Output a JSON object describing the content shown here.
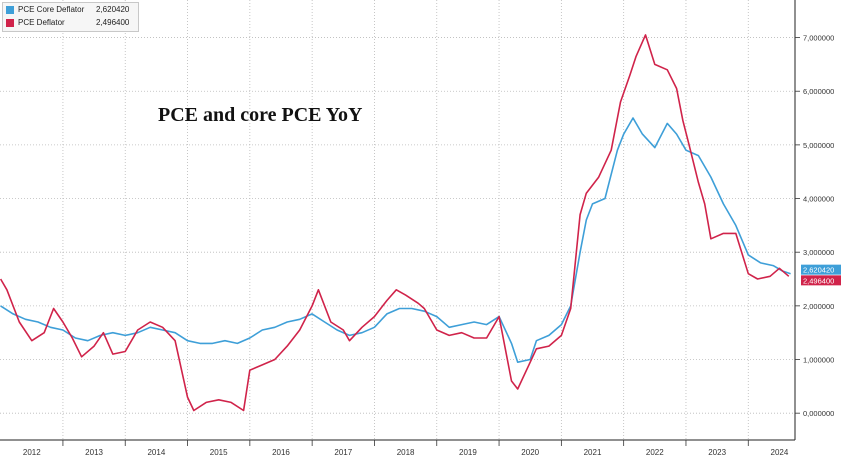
{
  "chart_data": {
    "type": "line",
    "title": "PCE and core PCE YoY",
    "x_ticks": [
      "2012",
      "2013",
      "2014",
      "2015",
      "2016",
      "2017",
      "2018",
      "2019",
      "2020",
      "2021",
      "2022",
      "2023",
      "2024"
    ],
    "y_ticks": [
      "0,000000",
      "1,000000",
      "2,000000",
      "3,000000",
      "4,000000",
      "5,000000",
      "6,000000",
      "7,000000"
    ],
    "ylim": [
      -0.5,
      7.7
    ],
    "xlim": [
      2011.99,
      2024.75
    ],
    "grid": true,
    "legend_position": "top-left",
    "series": [
      {
        "name": "PCE Core Deflator",
        "last_value": "2,620420",
        "color": "#3e9fd8",
        "points": [
          [
            2012.0,
            2.0
          ],
          [
            2012.2,
            1.85
          ],
          [
            2012.4,
            1.75
          ],
          [
            2012.6,
            1.7
          ],
          [
            2012.8,
            1.6
          ],
          [
            2013.0,
            1.55
          ],
          [
            2013.2,
            1.4
          ],
          [
            2013.4,
            1.35
          ],
          [
            2013.6,
            1.45
          ],
          [
            2013.8,
            1.5
          ],
          [
            2014.0,
            1.45
          ],
          [
            2014.2,
            1.5
          ],
          [
            2014.4,
            1.6
          ],
          [
            2014.6,
            1.55
          ],
          [
            2014.8,
            1.5
          ],
          [
            2015.0,
            1.35
          ],
          [
            2015.2,
            1.3
          ],
          [
            2015.4,
            1.3
          ],
          [
            2015.6,
            1.35
          ],
          [
            2015.8,
            1.3
          ],
          [
            2016.0,
            1.4
          ],
          [
            2016.2,
            1.55
          ],
          [
            2016.4,
            1.6
          ],
          [
            2016.6,
            1.7
          ],
          [
            2016.8,
            1.75
          ],
          [
            2017.0,
            1.85
          ],
          [
            2017.2,
            1.7
          ],
          [
            2017.4,
            1.55
          ],
          [
            2017.6,
            1.45
          ],
          [
            2017.8,
            1.5
          ],
          [
            2018.0,
            1.6
          ],
          [
            2018.2,
            1.85
          ],
          [
            2018.4,
            1.95
          ],
          [
            2018.6,
            1.95
          ],
          [
            2018.8,
            1.9
          ],
          [
            2019.0,
            1.8
          ],
          [
            2019.2,
            1.6
          ],
          [
            2019.4,
            1.65
          ],
          [
            2019.6,
            1.7
          ],
          [
            2019.8,
            1.65
          ],
          [
            2020.0,
            1.8
          ],
          [
            2020.2,
            1.3
          ],
          [
            2020.3,
            0.95
          ],
          [
            2020.5,
            1.0
          ],
          [
            2020.6,
            1.35
          ],
          [
            2020.8,
            1.45
          ],
          [
            2021.0,
            1.65
          ],
          [
            2021.15,
            2.0
          ],
          [
            2021.3,
            3.0
          ],
          [
            2021.4,
            3.6
          ],
          [
            2021.5,
            3.9
          ],
          [
            2021.7,
            4.0
          ],
          [
            2021.9,
            4.9
          ],
          [
            2022.0,
            5.2
          ],
          [
            2022.15,
            5.5
          ],
          [
            2022.3,
            5.2
          ],
          [
            2022.5,
            4.95
          ],
          [
            2022.7,
            5.4
          ],
          [
            2022.85,
            5.2
          ],
          [
            2023.0,
            4.9
          ],
          [
            2023.2,
            4.8
          ],
          [
            2023.4,
            4.4
          ],
          [
            2023.6,
            3.9
          ],
          [
            2023.8,
            3.5
          ],
          [
            2024.0,
            2.95
          ],
          [
            2024.2,
            2.8
          ],
          [
            2024.4,
            2.75
          ],
          [
            2024.55,
            2.65
          ],
          [
            2024.68,
            2.6
          ]
        ]
      },
      {
        "name": "PCE Deflator",
        "last_value": "2,496400",
        "color": "#d0234a",
        "points": [
          [
            2012.0,
            2.5
          ],
          [
            2012.1,
            2.3
          ],
          [
            2012.3,
            1.7
          ],
          [
            2012.5,
            1.35
          ],
          [
            2012.7,
            1.5
          ],
          [
            2012.85,
            1.95
          ],
          [
            2013.0,
            1.7
          ],
          [
            2013.15,
            1.4
          ],
          [
            2013.3,
            1.05
          ],
          [
            2013.5,
            1.25
          ],
          [
            2013.65,
            1.5
          ],
          [
            2013.8,
            1.1
          ],
          [
            2014.0,
            1.15
          ],
          [
            2014.2,
            1.55
          ],
          [
            2014.4,
            1.7
          ],
          [
            2014.6,
            1.6
          ],
          [
            2014.8,
            1.35
          ],
          [
            2015.0,
            0.3
          ],
          [
            2015.1,
            0.05
          ],
          [
            2015.3,
            0.2
          ],
          [
            2015.5,
            0.25
          ],
          [
            2015.7,
            0.2
          ],
          [
            2015.9,
            0.05
          ],
          [
            2016.0,
            0.8
          ],
          [
            2016.2,
            0.9
          ],
          [
            2016.4,
            1.0
          ],
          [
            2016.6,
            1.25
          ],
          [
            2016.8,
            1.55
          ],
          [
            2017.0,
            2.0
          ],
          [
            2017.1,
            2.3
          ],
          [
            2017.3,
            1.7
          ],
          [
            2017.5,
            1.55
          ],
          [
            2017.6,
            1.35
          ],
          [
            2017.8,
            1.6
          ],
          [
            2018.0,
            1.8
          ],
          [
            2018.2,
            2.1
          ],
          [
            2018.35,
            2.3
          ],
          [
            2018.5,
            2.2
          ],
          [
            2018.7,
            2.05
          ],
          [
            2018.8,
            1.95
          ],
          [
            2019.0,
            1.55
          ],
          [
            2019.2,
            1.45
          ],
          [
            2019.4,
            1.5
          ],
          [
            2019.6,
            1.4
          ],
          [
            2019.8,
            1.4
          ],
          [
            2020.0,
            1.8
          ],
          [
            2020.2,
            0.6
          ],
          [
            2020.3,
            0.45
          ],
          [
            2020.5,
            0.95
          ],
          [
            2020.6,
            1.2
          ],
          [
            2020.8,
            1.25
          ],
          [
            2021.0,
            1.45
          ],
          [
            2021.15,
            1.95
          ],
          [
            2021.3,
            3.7
          ],
          [
            2021.4,
            4.1
          ],
          [
            2021.6,
            4.4
          ],
          [
            2021.8,
            4.9
          ],
          [
            2021.95,
            5.8
          ],
          [
            2022.1,
            6.3
          ],
          [
            2022.2,
            6.65
          ],
          [
            2022.35,
            7.05
          ],
          [
            2022.5,
            6.5
          ],
          [
            2022.7,
            6.4
          ],
          [
            2022.85,
            6.05
          ],
          [
            2022.95,
            5.45
          ],
          [
            2023.05,
            5.0
          ],
          [
            2023.2,
            4.3
          ],
          [
            2023.3,
            3.9
          ],
          [
            2023.4,
            3.25
          ],
          [
            2023.6,
            3.35
          ],
          [
            2023.8,
            3.35
          ],
          [
            2024.0,
            2.6
          ],
          [
            2024.15,
            2.5
          ],
          [
            2024.35,
            2.55
          ],
          [
            2024.5,
            2.7
          ],
          [
            2024.65,
            2.55
          ]
        ]
      }
    ]
  }
}
